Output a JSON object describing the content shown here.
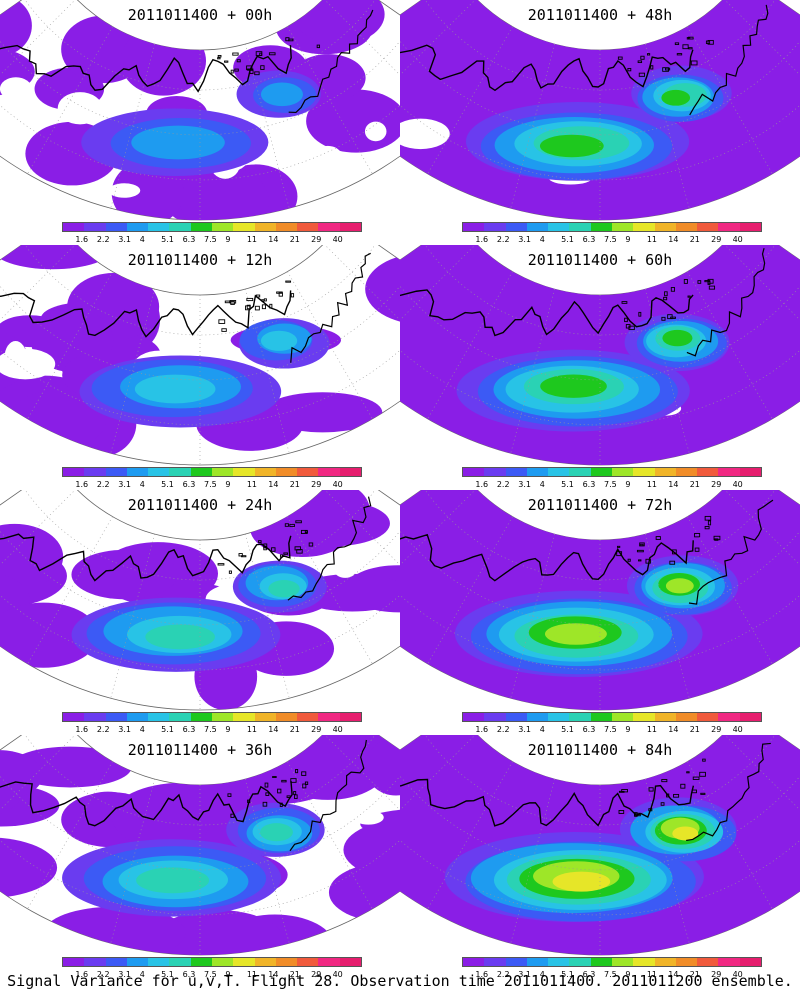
{
  "colorbar": {
    "labels": [
      "1.6",
      "2.2",
      "3.1",
      "4",
      "5.1",
      "6.3",
      "7.5",
      "9",
      "11",
      "14",
      "21",
      "29",
      "40"
    ],
    "colors": [
      "#8a1ee6",
      "#6a3cf0",
      "#3c5af5",
      "#1e9bf0",
      "#28c3e6",
      "#2ad2b4",
      "#1ec81e",
      "#9ee628",
      "#e6e628",
      "#f0b428",
      "#f08c28",
      "#f05a3c",
      "#f02882",
      "#e61e6e"
    ]
  },
  "panels": [
    {
      "title": "2011011400 + 00h",
      "coverage": 0.45,
      "intensity": 0.3
    },
    {
      "title": "2011011400 + 48h",
      "coverage": 0.93,
      "intensity": 0.55
    },
    {
      "title": "2011011400 + 12h",
      "coverage": 0.62,
      "intensity": 0.4
    },
    {
      "title": "2011011400 + 60h",
      "coverage": 0.98,
      "intensity": 0.62
    },
    {
      "title": "2011011400 + 24h",
      "coverage": 0.75,
      "intensity": 0.45
    },
    {
      "title": "2011011400 + 72h",
      "coverage": 1.0,
      "intensity": 0.72
    },
    {
      "title": "2011011400 + 36h",
      "coverage": 0.88,
      "intensity": 0.52
    },
    {
      "title": "2011011400 + 84h",
      "coverage": 1.0,
      "intensity": 0.8
    }
  ],
  "caption": "Signal Variance for u,v,T. Flight 28. Observation time 2011011400. 2011011200 ensemble."
}
